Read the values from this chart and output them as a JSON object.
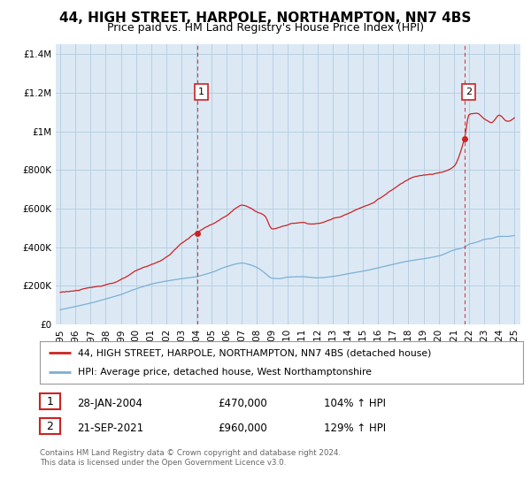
{
  "title": "44, HIGH STREET, HARPOLE, NORTHAMPTON, NN7 4BS",
  "subtitle": "Price paid vs. HM Land Registry's House Price Index (HPI)",
  "ylim": [
    0,
    1450000
  ],
  "yticks": [
    0,
    200000,
    400000,
    600000,
    800000,
    1000000,
    1200000,
    1400000
  ],
  "ytick_labels": [
    "£0",
    "£200K",
    "£400K",
    "£600K",
    "£800K",
    "£1M",
    "£1.2M",
    "£1.4M"
  ],
  "xlim_start": 1994.7,
  "xlim_end": 2025.4,
  "xticks": [
    1995,
    1996,
    1997,
    1998,
    1999,
    2000,
    2001,
    2002,
    2003,
    2004,
    2005,
    2006,
    2007,
    2008,
    2009,
    2010,
    2011,
    2012,
    2013,
    2014,
    2015,
    2016,
    2017,
    2018,
    2019,
    2020,
    2021,
    2022,
    2023,
    2024,
    2025
  ],
  "sale1_x": 2004.08,
  "sale1_y": 470000,
  "sale1_label": "1",
  "sale1_date": "28-JAN-2004",
  "sale1_price": "£470,000",
  "sale1_hpi": "104% ↑ HPI",
  "sale2_x": 2021.72,
  "sale2_y": 960000,
  "sale2_label": "2",
  "sale2_date": "21-SEP-2021",
  "sale2_price": "£960,000",
  "sale2_hpi": "129% ↑ HPI",
  "line1_color": "#cc2222",
  "line2_color": "#7ab0d4",
  "vline_color": "#cc2222",
  "background_color": "#dce9f5",
  "legend1_label": "44, HIGH STREET, HARPOLE, NORTHAMPTON, NN7 4BS (detached house)",
  "legend2_label": "HPI: Average price, detached house, West Northamptonshire",
  "footer": "Contains HM Land Registry data © Crown copyright and database right 2024.\nThis data is licensed under the Open Government Licence v3.0.",
  "title_fontsize": 11,
  "subtitle_fontsize": 9,
  "tick_fontsize": 7.5
}
